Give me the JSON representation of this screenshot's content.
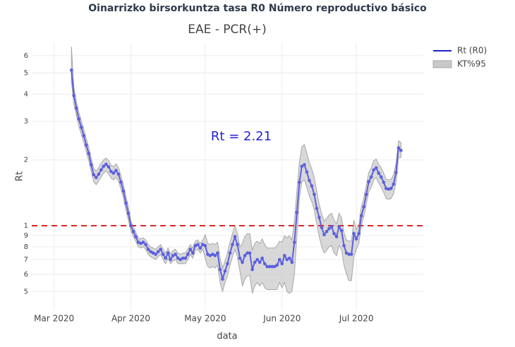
{
  "chart_data": {
    "type": "line",
    "title": "Oinarrizko birsorkuntza tasa R0 Número reproductivo básico",
    "subtitle": "EAE - PCR(+)",
    "x_label": "data",
    "y_label": "Rt",
    "annotation": "Rt =  2.21",
    "log_y": true,
    "grid": true,
    "legend": "top-right",
    "hline": {
      "value": 1,
      "color": "#d62728"
    },
    "xlim": [
      "2020-02-21",
      "2020-07-28"
    ],
    "xticks": [
      {
        "value": "2020-03-01",
        "label": "Mar 2020"
      },
      {
        "value": "2020-04-01",
        "label": "Apr 2020"
      },
      {
        "value": "2020-05-01",
        "label": "May 2020"
      },
      {
        "value": "2020-06-01",
        "label": "Jun 2020"
      },
      {
        "value": "2020-07-01",
        "label": "Jul 2020"
      }
    ],
    "ylim": [
      0.41,
      6.8
    ],
    "yticks": [
      {
        "value": 0.5,
        "label": "5"
      },
      {
        "value": 0.6,
        "label": "6"
      },
      {
        "value": 0.7,
        "label": "7"
      },
      {
        "value": 0.8,
        "label": "8"
      },
      {
        "value": 0.9,
        "label": "9"
      },
      1,
      2,
      3,
      4,
      5,
      6
    ],
    "x": [
      "2020-03-08",
      "2020-03-09",
      "2020-03-10",
      "2020-03-11",
      "2020-03-12",
      "2020-03-13",
      "2020-03-14",
      "2020-03-15",
      "2020-03-16",
      "2020-03-17",
      "2020-03-18",
      "2020-03-19",
      "2020-03-20",
      "2020-03-21",
      "2020-03-22",
      "2020-03-23",
      "2020-03-24",
      "2020-03-25",
      "2020-03-26",
      "2020-03-27",
      "2020-03-28",
      "2020-03-29",
      "2020-03-30",
      "2020-03-31",
      "2020-04-01",
      "2020-04-02",
      "2020-04-03",
      "2020-04-04",
      "2020-04-05",
      "2020-04-06",
      "2020-04-07",
      "2020-04-08",
      "2020-04-09",
      "2020-04-10",
      "2020-04-11",
      "2020-04-12",
      "2020-04-13",
      "2020-04-14",
      "2020-04-15",
      "2020-04-16",
      "2020-04-17",
      "2020-04-18",
      "2020-04-19",
      "2020-04-20",
      "2020-04-21",
      "2020-04-22",
      "2020-04-23",
      "2020-04-24",
      "2020-04-25",
      "2020-04-26",
      "2020-04-27",
      "2020-04-28",
      "2020-04-29",
      "2020-04-30",
      "2020-05-01",
      "2020-05-02",
      "2020-05-03",
      "2020-05-04",
      "2020-05-05",
      "2020-05-06",
      "2020-05-07",
      "2020-05-08",
      "2020-05-09",
      "2020-05-10",
      "2020-05-11",
      "2020-05-12",
      "2020-05-13",
      "2020-05-14",
      "2020-05-15",
      "2020-05-16",
      "2020-05-17",
      "2020-05-18",
      "2020-05-19",
      "2020-05-20",
      "2020-05-21",
      "2020-05-22",
      "2020-05-23",
      "2020-05-24",
      "2020-05-25",
      "2020-05-26",
      "2020-05-27",
      "2020-05-28",
      "2020-05-29",
      "2020-05-30",
      "2020-05-31",
      "2020-06-01",
      "2020-06-02",
      "2020-06-03",
      "2020-06-04",
      "2020-06-05",
      "2020-06-06",
      "2020-06-07",
      "2020-06-08",
      "2020-06-09",
      "2020-06-10",
      "2020-06-11",
      "2020-06-12",
      "2020-06-13",
      "2020-06-14",
      "2020-06-15",
      "2020-06-16",
      "2020-06-17",
      "2020-06-18",
      "2020-06-19",
      "2020-06-20",
      "2020-06-21",
      "2020-06-22",
      "2020-06-23",
      "2020-06-24",
      "2020-06-25",
      "2020-06-26",
      "2020-06-27",
      "2020-06-28",
      "2020-06-29",
      "2020-06-30",
      "2020-07-01",
      "2020-07-02",
      "2020-07-03",
      "2020-07-04",
      "2020-07-05",
      "2020-07-06",
      "2020-07-07",
      "2020-07-08",
      "2020-07-09",
      "2020-07-10",
      "2020-07-11",
      "2020-07-12",
      "2020-07-13",
      "2020-07-14",
      "2020-07-15",
      "2020-07-16",
      "2020-07-17",
      "2020-07-18",
      "2020-07-19"
    ],
    "series": [
      {
        "name": "Rt (R0)",
        "color": "#5b5fde",
        "legend_color": "#1f1fd0",
        "values": [
          5.15,
          3.94,
          3.45,
          3.08,
          2.82,
          2.58,
          2.34,
          2.14,
          1.9,
          1.71,
          1.66,
          1.72,
          1.8,
          1.87,
          1.91,
          1.86,
          1.77,
          1.74,
          1.79,
          1.72,
          1.58,
          1.44,
          1.27,
          1.14,
          1.0,
          0.94,
          0.89,
          0.84,
          0.83,
          0.84,
          0.82,
          0.78,
          0.76,
          0.75,
          0.74,
          0.76,
          0.78,
          0.74,
          0.71,
          0.75,
          0.7,
          0.73,
          0.74,
          0.71,
          0.7,
          0.71,
          0.71,
          0.74,
          0.78,
          0.75,
          0.81,
          0.82,
          0.79,
          0.82,
          0.81,
          0.74,
          0.73,
          0.74,
          0.73,
          0.75,
          0.63,
          0.57,
          0.62,
          0.67,
          0.75,
          0.82,
          0.89,
          0.82,
          0.71,
          0.68,
          0.73,
          0.75,
          0.75,
          0.63,
          0.68,
          0.7,
          0.68,
          0.71,
          0.67,
          0.65,
          0.65,
          0.65,
          0.65,
          0.66,
          0.7,
          0.67,
          0.73,
          0.7,
          0.71,
          0.68,
          0.84,
          1.15,
          1.58,
          1.87,
          1.9,
          1.76,
          1.61,
          1.52,
          1.39,
          1.2,
          1.09,
          0.98,
          0.91,
          0.94,
          0.97,
          0.99,
          0.92,
          0.89,
          0.99,
          0.95,
          0.81,
          0.75,
          0.74,
          0.74,
          0.92,
          0.87,
          0.92,
          1.11,
          1.22,
          1.39,
          1.59,
          1.67,
          1.8,
          1.84,
          1.74,
          1.67,
          1.58,
          1.48,
          1.47,
          1.48,
          1.55,
          1.75,
          2.27,
          2.21
        ]
      }
    ],
    "band": {
      "name": "KT%95",
      "color": "#c8c8c8",
      "lower": [
        4.6,
        3.6,
        3.2,
        2.86,
        2.62,
        2.4,
        2.18,
        1.99,
        1.77,
        1.59,
        1.54,
        1.6,
        1.67,
        1.74,
        1.78,
        1.73,
        1.65,
        1.62,
        1.66,
        1.6,
        1.47,
        1.34,
        1.18,
        1.06,
        0.95,
        0.89,
        0.85,
        0.8,
        0.79,
        0.8,
        0.78,
        0.74,
        0.72,
        0.71,
        0.7,
        0.72,
        0.74,
        0.7,
        0.67,
        0.71,
        0.67,
        0.69,
        0.7,
        0.67,
        0.67,
        0.67,
        0.67,
        0.7,
        0.74,
        0.71,
        0.77,
        0.78,
        0.75,
        0.78,
        0.71,
        0.65,
        0.64,
        0.65,
        0.64,
        0.66,
        0.55,
        0.5,
        0.55,
        0.59,
        0.66,
        0.72,
        0.78,
        0.72,
        0.62,
        0.53,
        0.57,
        0.59,
        0.59,
        0.49,
        0.53,
        0.55,
        0.53,
        0.55,
        0.52,
        0.51,
        0.51,
        0.51,
        0.51,
        0.51,
        0.55,
        0.52,
        0.55,
        0.5,
        0.49,
        0.5,
        0.6,
        0.9,
        1.34,
        1.59,
        1.62,
        1.5,
        1.37,
        1.29,
        1.18,
        1.02,
        0.89,
        0.8,
        0.75,
        0.77,
        0.8,
        0.81,
        0.75,
        0.73,
        0.81,
        0.78,
        0.66,
        0.6,
        0.56,
        0.56,
        0.72,
        0.78,
        0.83,
        1.0,
        1.1,
        1.25,
        1.43,
        1.5,
        1.62,
        1.66,
        1.57,
        1.5,
        1.42,
        1.33,
        1.32,
        1.33,
        1.4,
        1.58,
        2.05,
        2.05
      ],
      "upper": [
        6.6,
        4.3,
        3.7,
        3.3,
        3.02,
        2.76,
        2.5,
        2.29,
        2.03,
        1.83,
        1.78,
        1.84,
        1.93,
        2.0,
        2.04,
        1.99,
        1.89,
        1.86,
        1.92,
        1.84,
        1.69,
        1.54,
        1.36,
        1.22,
        1.05,
        0.99,
        0.93,
        0.88,
        0.87,
        0.88,
        0.86,
        0.82,
        0.8,
        0.79,
        0.78,
        0.8,
        0.82,
        0.78,
        0.75,
        0.79,
        0.74,
        0.77,
        0.78,
        0.75,
        0.74,
        0.75,
        0.75,
        0.78,
        0.82,
        0.79,
        0.85,
        0.86,
        0.83,
        0.86,
        0.91,
        0.83,
        0.82,
        0.83,
        0.82,
        0.84,
        0.71,
        0.64,
        0.69,
        0.75,
        0.84,
        0.92,
        1.0,
        0.92,
        0.8,
        0.83,
        0.89,
        0.92,
        0.92,
        0.77,
        0.83,
        0.85,
        0.83,
        0.87,
        0.82,
        0.79,
        0.79,
        0.79,
        0.79,
        0.81,
        0.85,
        0.84,
        0.9,
        0.88,
        0.9,
        0.86,
        1.05,
        1.45,
        1.95,
        2.3,
        2.35,
        2.15,
        1.95,
        1.82,
        1.66,
        1.44,
        1.25,
        1.13,
        1.05,
        1.08,
        1.12,
        1.14,
        1.06,
        1.02,
        1.14,
        1.09,
        0.93,
        0.86,
        0.85,
        0.85,
        1.06,
        0.96,
        1.01,
        1.22,
        1.34,
        1.53,
        1.75,
        1.84,
        1.98,
        2.02,
        1.91,
        1.84,
        1.74,
        1.63,
        1.62,
        1.63,
        1.71,
        1.93,
        2.45,
        2.4
      ]
    }
  }
}
